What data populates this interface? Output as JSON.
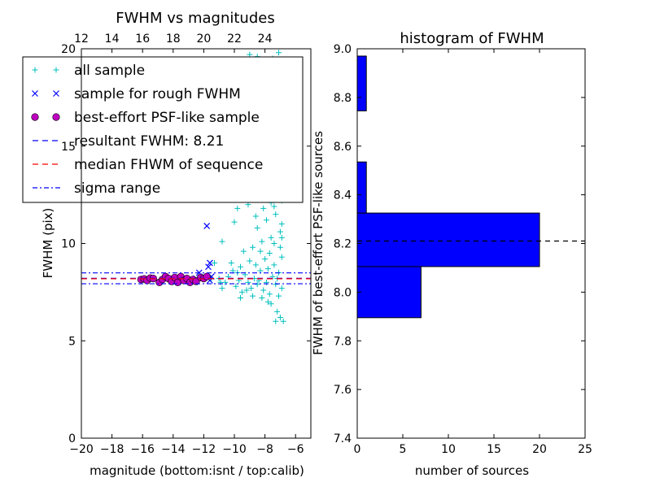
{
  "chart_data": [
    {
      "type": "scatter",
      "title": "FWHM vs magnitudes",
      "xlabel": "magnitude (bottom:isnt / top:calib)",
      "ylabel": "FWHM (pix)",
      "xlim": [
        -20,
        -5
      ],
      "ylim": [
        0,
        20
      ],
      "x_ticks": [
        -20,
        -18,
        -16,
        -14,
        -12,
        -10,
        -8,
        -6
      ],
      "x_tick_labels": [
        "−20",
        "−18",
        "−16",
        "−14",
        "−12",
        "−10",
        "−8",
        "−6"
      ],
      "y_ticks": [
        0,
        5,
        10,
        15,
        20
      ],
      "y_tick_labels": [
        "0",
        "5",
        "10",
        "15",
        "20"
      ],
      "top_axis": {
        "offset": 32,
        "ticks": [
          12,
          14,
          16,
          18,
          20,
          22,
          24
        ],
        "tick_labels": [
          "12",
          "14",
          "16",
          "18",
          "20",
          "22",
          "24"
        ]
      },
      "grid": false,
      "legend_position": "top-left",
      "legend": [
        {
          "label": "all sample",
          "marker": "plus",
          "color": "#00bfbf"
        },
        {
          "label": "sample for rough FWHM",
          "marker": "x",
          "color": "#0000ff"
        },
        {
          "label": "best-effort PSF-like sample",
          "marker": "circle",
          "color": "#bf00bf"
        },
        {
          "label": "resultant FWHM: 8.21",
          "marker": "line-dashed",
          "color": "#0000ff"
        },
        {
          "label": "median FHWM of sequence",
          "marker": "line-dashed",
          "color": "#ff0000"
        },
        {
          "label": "sigma range",
          "marker": "line-dashdot",
          "color": "#0000ff"
        }
      ],
      "series": [
        {
          "name": "all sample",
          "color": "#00bfbf",
          "marker": "plus",
          "points": [
            [
              -10.4,
              8.3
            ],
            [
              -10.1,
              8.6
            ],
            [
              -9.9,
              7.8
            ],
            [
              -9.7,
              8.1
            ],
            [
              -9.5,
              7.5
            ],
            [
              -9.3,
              8.4
            ],
            [
              -9.1,
              8.0
            ],
            [
              -8.9,
              7.7
            ],
            [
              -8.7,
              8.2
            ],
            [
              -8.5,
              7.9
            ],
            [
              -8.3,
              8.6
            ],
            [
              -8.1,
              7.6
            ],
            [
              -7.9,
              8.0
            ],
            [
              -7.7,
              7.4
            ],
            [
              -7.5,
              8.3
            ],
            [
              -7.3,
              7.9
            ],
            [
              -10.2,
              9.0
            ],
            [
              -9.6,
              8.8
            ],
            [
              -9.0,
              9.1
            ],
            [
              -8.6,
              8.9
            ],
            [
              -8.0,
              9.2
            ],
            [
              -7.4,
              8.9
            ],
            [
              -7.1,
              8.5
            ],
            [
              -6.9,
              7.7
            ],
            [
              -10.6,
              8.0
            ],
            [
              -11.0,
              8.2
            ],
            [
              -10.8,
              7.7
            ],
            [
              -9.8,
              8.5
            ],
            [
              -9.2,
              7.6
            ],
            [
              -8.4,
              8.1
            ],
            [
              -7.8,
              8.7
            ],
            [
              -7.2,
              8.2
            ],
            [
              -9.4,
              9.6
            ],
            [
              -8.8,
              9.8
            ],
            [
              -8.2,
              10.1
            ],
            [
              -7.6,
              10.3
            ],
            [
              -7.0,
              10.6
            ],
            [
              -8.5,
              10.8
            ],
            [
              -7.9,
              11.2
            ],
            [
              -7.3,
              11.5
            ],
            [
              -6.9,
              11.0
            ],
            [
              -8.1,
              11.8
            ],
            [
              -7.6,
              12.1
            ],
            [
              -7.1,
              12.4
            ],
            [
              -8.3,
              12.6
            ],
            [
              -7.8,
              12.9
            ],
            [
              -7.2,
              13.2
            ],
            [
              -6.8,
              12.7
            ],
            [
              -7.5,
              13.5
            ],
            [
              -8.0,
              13.0
            ],
            [
              -7.4,
              11.9
            ],
            [
              -6.9,
              12.2
            ],
            [
              -8.6,
              11.4
            ],
            [
              -9.1,
              12.0
            ],
            [
              -9.8,
              11.8
            ],
            [
              -10.0,
              11.1
            ],
            [
              -10.8,
              10.1
            ],
            [
              -11.3,
              9.0
            ],
            [
              -8.2,
              7.2
            ],
            [
              -7.6,
              6.9
            ],
            [
              -7.2,
              6.5
            ],
            [
              -7.0,
              6.2
            ],
            [
              -6.8,
              6.0
            ],
            [
              -7.3,
              6.0
            ],
            [
              -7.8,
              7.0
            ],
            [
              -8.8,
              7.3
            ],
            [
              -9.6,
              7.2
            ],
            [
              -7.1,
              7.3
            ],
            [
              -6.9,
              9.3
            ],
            [
              -7.0,
              9.8
            ],
            [
              -7.7,
              9.5
            ],
            [
              -8.3,
              9.6
            ],
            [
              -7.4,
              10.0
            ],
            [
              -6.9,
              10.3
            ],
            [
              -7.2,
              13.8
            ],
            [
              -7.7,
              12.3
            ],
            [
              -8.4,
              13.3
            ],
            [
              -9.5,
              12.8
            ],
            [
              -10.9,
              8.0
            ],
            [
              -11.5,
              8.2
            ],
            [
              -12.1,
              8.3
            ],
            [
              -12.7,
              8.2
            ],
            [
              -13.2,
              8.1
            ],
            [
              -13.8,
              8.2
            ],
            [
              -9.0,
              19.7
            ],
            [
              -8.5,
              19.6
            ],
            [
              -7.5,
              19.5
            ],
            [
              -7.1,
              19.8
            ],
            [
              -8.8,
              19.3
            ],
            [
              -7.8,
              19.4
            ]
          ]
        },
        {
          "name": "sample for rough FWHM",
          "color": "#0000ff",
          "marker": "x",
          "points": [
            [
              -11.8,
              10.9
            ],
            [
              -11.6,
              9.0
            ],
            [
              -11.7,
              8.8
            ],
            [
              -12.3,
              8.5
            ],
            [
              -12.0,
              8.3
            ],
            [
              -11.5,
              8.3
            ],
            [
              -11.6,
              8.1
            ],
            [
              -12.5,
              8.2
            ],
            [
              -13.0,
              8.1
            ]
          ]
        },
        {
          "name": "best-effort PSF-like sample",
          "color": "#bf00bf",
          "marker": "circle",
          "points": [
            [
              -16.1,
              8.15
            ],
            [
              -15.9,
              8.18
            ],
            [
              -15.7,
              8.1
            ],
            [
              -15.5,
              8.22
            ],
            [
              -15.3,
              8.2
            ],
            [
              -14.9,
              8.0
            ],
            [
              -14.7,
              8.15
            ],
            [
              -14.5,
              8.3
            ],
            [
              -14.3,
              8.2
            ],
            [
              -14.1,
              8.05
            ],
            [
              -13.9,
              8.25
            ],
            [
              -13.7,
              8.0
            ],
            [
              -13.5,
              8.3
            ],
            [
              -13.3,
              8.1
            ],
            [
              -13.1,
              8.2
            ],
            [
              -12.9,
              8.0
            ],
            [
              -12.7,
              8.15
            ],
            [
              -12.5,
              8.05
            ],
            [
              -12.2,
              8.25
            ],
            [
              -12.0,
              8.2
            ],
            [
              -11.8,
              8.3
            ]
          ]
        }
      ],
      "hlines": [
        {
          "name": "resultant FWHM: 8.21",
          "y": 8.21,
          "style": "dashed",
          "color": "#0000ff"
        },
        {
          "name": "median FHWM of sequence",
          "y": 8.19,
          "style": "dashed",
          "color": "#ff0000"
        },
        {
          "name": "sigma range upper",
          "y": 8.49,
          "style": "dashdot",
          "color": "#0000ff"
        },
        {
          "name": "sigma range lower",
          "y": 7.93,
          "style": "dashdot",
          "color": "#0000ff"
        }
      ]
    },
    {
      "type": "bar",
      "orientation": "horizontal",
      "title": "histogram of FWHM",
      "xlabel": "number of sources",
      "ylabel": "FWHM of best-effort PSF-like sources",
      "xlim": [
        0,
        25
      ],
      "ylim": [
        7.4,
        9.0
      ],
      "x_ticks": [
        0,
        5,
        10,
        15,
        20,
        25
      ],
      "x_tick_labels": [
        "0",
        "5",
        "10",
        "15",
        "20",
        "25"
      ],
      "y_ticks": [
        7.4,
        7.6,
        7.8,
        8.0,
        8.2,
        8.4,
        8.6,
        8.8,
        9.0
      ],
      "y_tick_labels": [
        "7.4",
        "7.6",
        "7.8",
        "8.0",
        "8.2",
        "8.4",
        "8.6",
        "8.8",
        "9.0"
      ],
      "grid": false,
      "bar_color": "#0000ff",
      "bins": [
        {
          "y0": 7.895,
          "y1": 8.105,
          "count": 7
        },
        {
          "y0": 8.105,
          "y1": 8.325,
          "count": 20
        },
        {
          "y0": 8.325,
          "y1": 8.535,
          "count": 1
        },
        {
          "y0": 8.535,
          "y1": 8.745,
          "count": 0
        },
        {
          "y0": 8.745,
          "y1": 8.97,
          "count": 1
        }
      ],
      "reference_line": {
        "y": 8.21,
        "style": "dashed",
        "color": "#000000"
      }
    }
  ]
}
